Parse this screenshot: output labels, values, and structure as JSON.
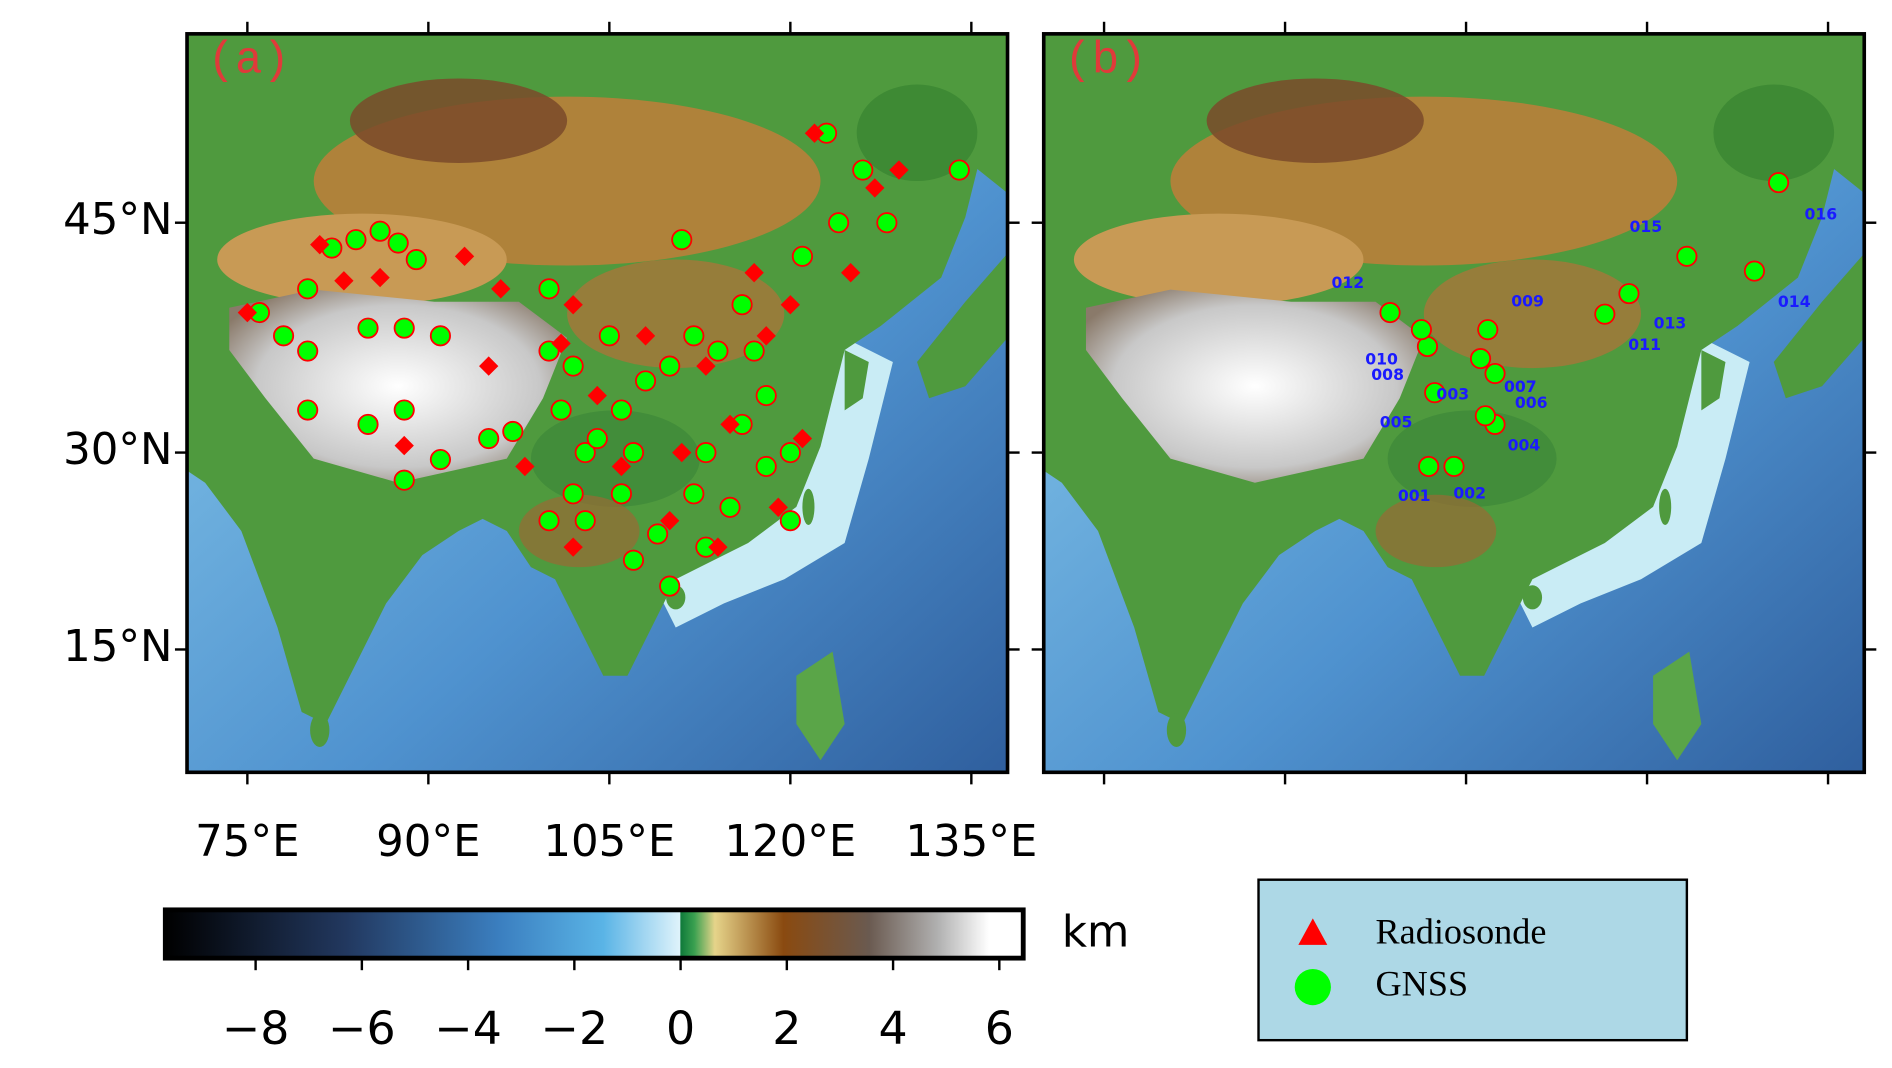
{
  "map": {
    "xlim": [
      70,
      138
    ],
    "ylim": [
      5,
      55
    ],
    "xticks": [
      {
        "value": 75,
        "label": "75°E"
      },
      {
        "value": 90,
        "label": "90°E"
      },
      {
        "value": 105,
        "label": "105°E"
      },
      {
        "value": 120,
        "label": "120°E"
      },
      {
        "value": 135,
        "label": "135°E"
      }
    ],
    "yticks": [
      {
        "value": 45,
        "label": "45°N"
      },
      {
        "value": 30,
        "label": "30°N"
      },
      {
        "value": 15,
        "label": "15°N"
      }
    ]
  },
  "panels": [
    {
      "label": "(a)",
      "gnss": {
        "lon": [
          76,
          78,
          80,
          82,
          84,
          86,
          87.5,
          89,
          80,
          85,
          88,
          91,
          80,
          85,
          88,
          91,
          88,
          95,
          97,
          100,
          102,
          101,
          103,
          104,
          102,
          100,
          103,
          106,
          107,
          106,
          108,
          110,
          112,
          114,
          116,
          117,
          118,
          116,
          113,
          112,
          115,
          118,
          120,
          113,
          110,
          121,
          124,
          126,
          123,
          128,
          134,
          105,
          100,
          111,
          107,
          109,
          120
        ],
        "lat": [
          39.5,
          38,
          41,
          43.5,
          44,
          44.5,
          43.8,
          42.8,
          37,
          38.5,
          38.5,
          38,
          33,
          32,
          33,
          29.5,
          28,
          31,
          31.5,
          37,
          36,
          33,
          30,
          31,
          27,
          25,
          25,
          27,
          30,
          33,
          35,
          36,
          38,
          37,
          40,
          37,
          34,
          32,
          30,
          27,
          26,
          29,
          30,
          23,
          20,
          43,
          45,
          48,
          50,
          45,
          48,
          38,
          41,
          44,
          22,
          24,
          25
        ]
      },
      "radiosonde": {
        "lon": [
          75,
          81,
          86,
          93,
          95,
          98,
          101,
          104,
          108,
          113,
          118,
          115,
          111,
          106,
          110,
          114,
          119,
          121,
          120,
          125,
          127,
          122,
          129,
          117,
          102,
          88,
          83,
          96,
          102
        ],
        "lat": [
          39.5,
          43.7,
          41.7,
          43,
          36,
          29,
          37.5,
          34,
          38,
          36,
          38,
          32,
          30,
          29,
          25,
          23,
          26,
          31,
          40,
          42,
          47,
          50,
          48,
          42,
          23,
          30.5,
          41.5,
          41,
          40
        ]
      }
    },
    {
      "label": "(b)",
      "stations": [
        {
          "id": "001",
          "lon": 101.9,
          "lat": 29.0
        },
        {
          "id": "002",
          "lon": 104.0,
          "lat": 29.0
        },
        {
          "id": "003",
          "lon": 102.4,
          "lat": 34.2
        },
        {
          "id": "004",
          "lon": 107.4,
          "lat": 32.0
        },
        {
          "id": "005",
          "lon": 106.6,
          "lat": 32.6
        },
        {
          "id": "006",
          "lon": 107.4,
          "lat": 35.5
        },
        {
          "id": "007",
          "lon": 106.2,
          "lat": 36.5
        },
        {
          "id": "008",
          "lon": 101.8,
          "lat": 37.3
        },
        {
          "id": "009",
          "lon": 106.8,
          "lat": 38.4
        },
        {
          "id": "010",
          "lon": 101.3,
          "lat": 38.4
        },
        {
          "id": "011",
          "lon": 116.5,
          "lat": 39.4
        },
        {
          "id": "012",
          "lon": 98.7,
          "lat": 39.5
        },
        {
          "id": "013",
          "lon": 118.5,
          "lat": 40.7
        },
        {
          "id": "014",
          "lon": 128.9,
          "lat": 42.1
        },
        {
          "id": "015",
          "lon": 123.3,
          "lat": 43.0
        },
        {
          "id": "016",
          "lon": 130.9,
          "lat": 47.3
        }
      ]
    }
  ],
  "colorbar": {
    "unit": "km",
    "clim": [
      -9.7,
      6.45
    ],
    "ticks": [
      {
        "value": -8,
        "label": "−8"
      },
      {
        "value": -6,
        "label": "−6"
      },
      {
        "value": -4,
        "label": "−4"
      },
      {
        "value": -2,
        "label": "−2"
      },
      0,
      2,
      4,
      6
    ]
  },
  "legend": {
    "items": [
      {
        "name": "Radiosonde",
        "color": "#ff0000"
      },
      {
        "name": "GNSS",
        "color": "#00ff00"
      }
    ]
  }
}
